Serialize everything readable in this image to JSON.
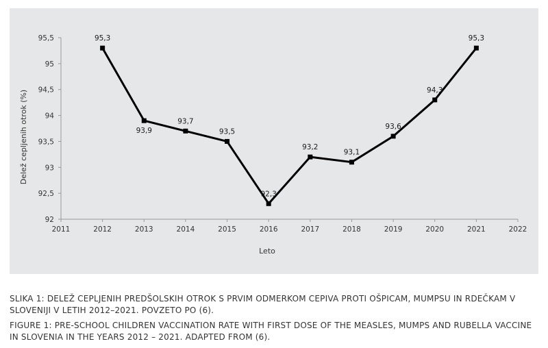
{
  "chart_data": {
    "type": "line",
    "title": "",
    "xlabel": "Leto",
    "ylabel": "Delež cepljenih otrok (%)",
    "xlim": [
      2011,
      2022
    ],
    "ylim": [
      92,
      95.5
    ],
    "x_ticks": [
      "2011",
      "2012",
      "2013",
      "2014",
      "2015",
      "2016",
      "2017",
      "2018",
      "2019",
      "2020",
      "2021",
      "2022"
    ],
    "y_ticks": [
      "92",
      "92,5",
      "93",
      "93,5",
      "94",
      "94,5",
      "95",
      "95,5"
    ],
    "grid": false,
    "legend": "none",
    "series": [
      {
        "x": [
          2012,
          2013,
          2014,
          2015,
          2016,
          2017,
          2018,
          2019,
          2020,
          2021
        ],
        "values": [
          95.3,
          93.9,
          93.7,
          93.5,
          92.3,
          93.2,
          93.1,
          93.6,
          94.3,
          95.3
        ],
        "labels": [
          "95,3",
          "93,9",
          "93,7",
          "93,5",
          "92,3",
          "93,2",
          "93,1",
          "93,6",
          "94,3",
          "95,3"
        ],
        "color": "#000000"
      }
    ]
  },
  "caption": {
    "slovene": "SLIKA 1: DELEŽ CEPLJENIH PREDŠOLSKIH OTROK S PRVIM ODMERKOM CEPIVA PROTI OŠPICAM, MUMPSU IN RDEČKAM V SLOVENIJI V LETIH 2012–2021. POVZETO PO (6).",
    "english": "FIGURE 1: PRE-SCHOOL CHILDREN VACCINATION RATE WITH FIRST DOSE OF THE MEASLES, MUMPS AND RUBELLA VACCINE IN SLOVENIA IN THE YEARS 2012 – 2021. ADAPTED FROM (6)."
  },
  "colors": {
    "panel_background": "#e6e7e8",
    "axis": "#9a9a9a",
    "line": "#000000"
  }
}
